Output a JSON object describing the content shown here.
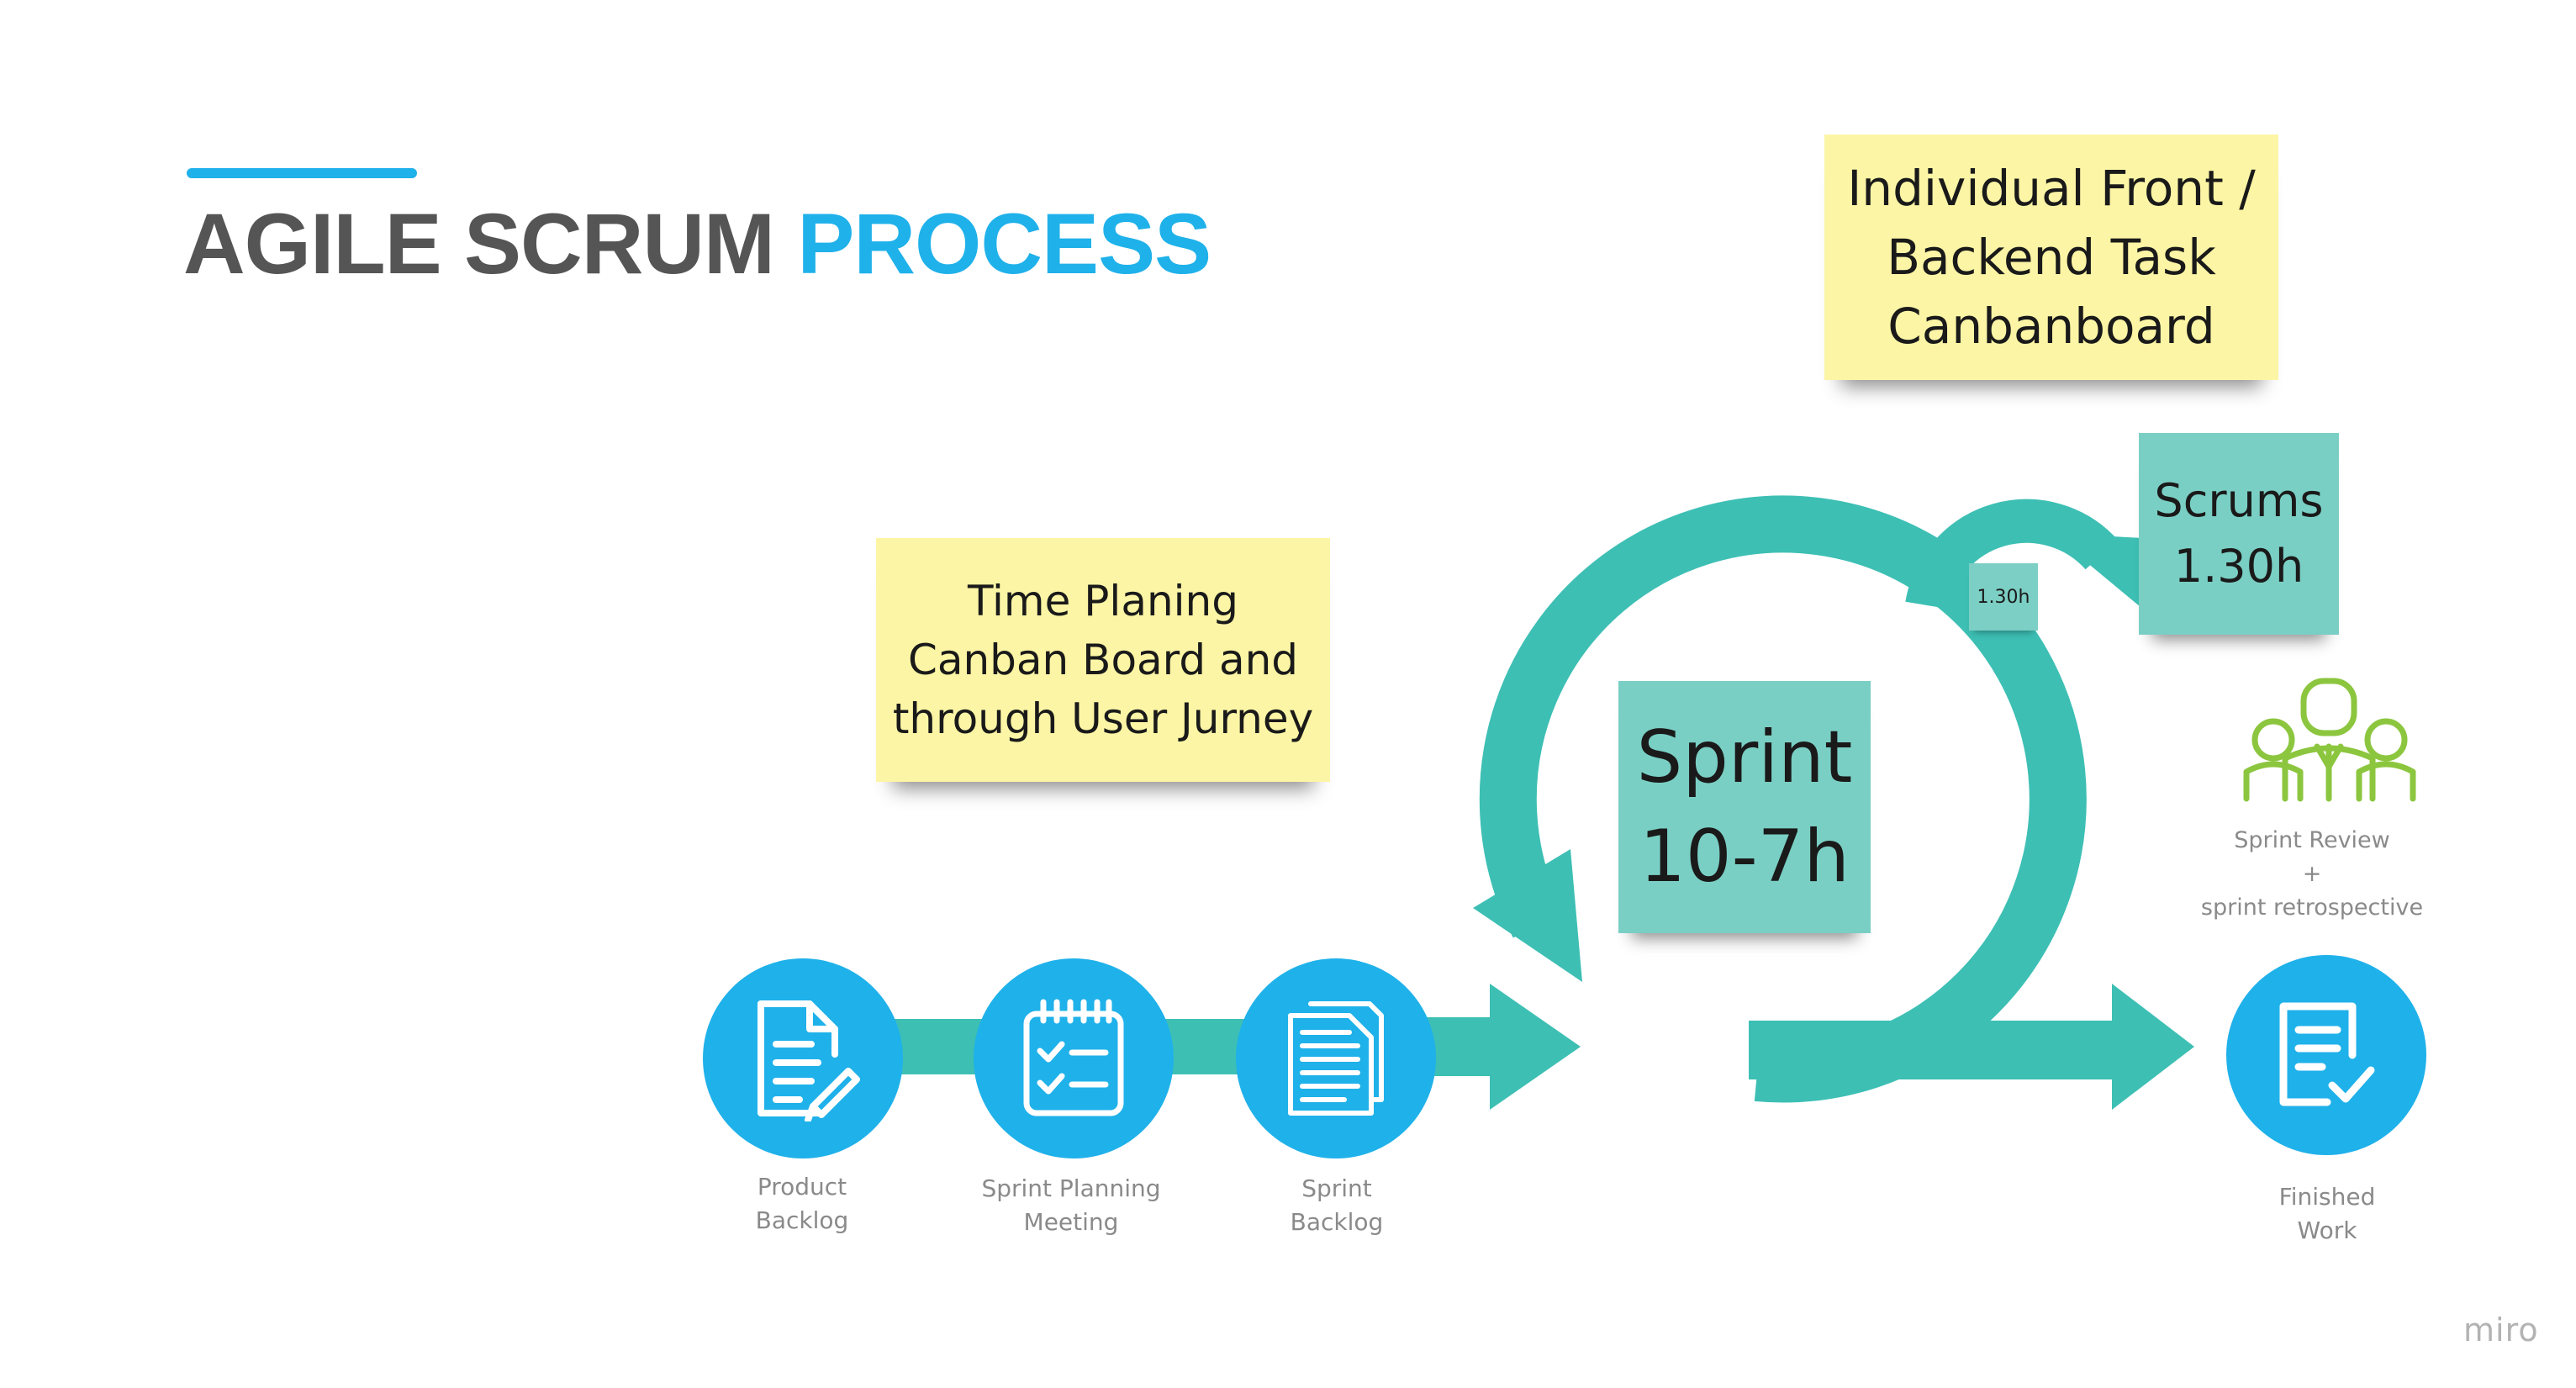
{
  "title": {
    "part1": "AGILE SCRUM",
    "part2": "PROCESS"
  },
  "colors": {
    "accent_blue": "#1fb1ea",
    "teal": "#3dbfb4",
    "sticky_yellow": "#fcf5a5",
    "sticky_teal": "#7acfc4",
    "team_green": "#8cc63f"
  },
  "notes": {
    "backend": [
      "Individual Front /",
      "Backend Task",
      "Canbanboard"
    ],
    "time": [
      "Time Planing",
      "Canban Board and",
      "through User Jurney"
    ],
    "scrums": [
      "Scrums",
      "1.30h"
    ],
    "sprint": [
      "Sprint",
      "10-7h"
    ],
    "small": "1.30h"
  },
  "steps": [
    {
      "label": [
        "Product",
        "Backlog"
      ],
      "icon": "document-pencil-icon"
    },
    {
      "label": [
        "Sprint Planning",
        "Meeting"
      ],
      "icon": "checklist-notepad-icon"
    },
    {
      "label": [
        "Sprint",
        "Backlog"
      ],
      "icon": "stacked-documents-icon"
    },
    {
      "label": [
        "Finished",
        "Work"
      ],
      "icon": "document-check-icon"
    }
  ],
  "review": [
    "Sprint Review",
    "+",
    "sprint retrospective"
  ],
  "team_icon": "team-people-icon",
  "watermark": "miro"
}
